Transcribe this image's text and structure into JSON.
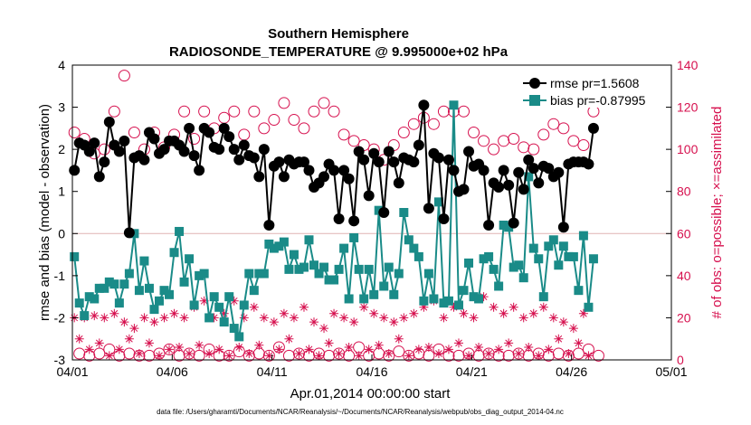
{
  "chart_data": {
    "type": "line",
    "title": "Southern Hemisphere",
    "subtitle": "RADIOSONDE_TEMPERATURE @ 9.995000e+02 hPa",
    "xlabel": "Apr.01,2014 00:00:00 start",
    "ylabel": "rmse and bias (model - observation)",
    "ylabel_right": "# of obs: o=possible; ×=assimilated",
    "footnote": "data file: /Users/gharamti/Documents/NCAR/Reanalysis/~/Documents/NCAR/Reanalysis/webpub/obs_diag_output_2014-04.nc",
    "xlim": [
      0,
      30
    ],
    "ylim": [
      -3,
      4
    ],
    "ylim_right": [
      0,
      140
    ],
    "x_tick_labels": [
      "04/01",
      "04/06",
      "04/11",
      "04/16",
      "04/21",
      "04/26",
      "05/01"
    ],
    "y_ticks": [
      "-3",
      "-2",
      "-1",
      "0",
      "1",
      "2",
      "3",
      "4"
    ],
    "y_ticks_right": [
      "0",
      "20",
      "40",
      "60",
      "80",
      "100",
      "120",
      "140"
    ],
    "x_step_days": 0.25,
    "series": [
      {
        "name": "rmse pr=1.5608",
        "color": "#000000",
        "values": [
          1.5,
          2.15,
          2.1,
          1.95,
          2.15,
          1.35,
          1.7,
          2.65,
          2.1,
          1.95,
          2.2,
          0.02,
          1.8,
          1.85,
          1.75,
          2.4,
          2.25,
          1.9,
          2.0,
          2.2,
          2.2,
          2.1,
          1.95,
          2.5,
          1.85,
          1.5,
          2.5,
          2.4,
          2.05,
          2.0,
          2.5,
          2.3,
          2.0,
          1.75,
          2.1,
          1.85,
          1.8,
          1.35,
          2.0,
          0.2,
          1.6,
          1.7,
          1.35,
          1.75,
          1.65,
          1.7,
          1.7,
          1.5,
          1.1,
          1.2,
          1.35,
          1.65,
          1.5,
          0.35,
          1.5,
          1.3,
          0.3,
          1.95,
          1.75,
          0.9,
          1.9,
          1.7,
          0.5,
          1.95,
          1.7,
          1.2,
          1.8,
          1.75,
          1.7,
          2.1,
          3.05,
          0.6,
          1.9,
          1.8,
          0.35,
          1.75,
          1.5,
          1.0,
          1.05,
          1.95,
          1.6,
          1.65,
          1.5,
          0.2,
          1.2,
          1.1,
          1.5,
          1.15,
          0.25,
          1.45,
          1.05,
          1.75,
          1.55,
          1.2,
          1.6,
          1.55,
          1.35,
          1.45,
          0.15,
          1.65,
          1.7,
          1.7,
          1.7,
          1.65,
          2.5
        ]
      },
      {
        "name": "bias pr=-0.87995",
        "color": "#1a8b88",
        "values": [
          -0.55,
          -1.65,
          -1.95,
          -1.5,
          -1.55,
          -1.3,
          -1.3,
          -1.15,
          -1.2,
          -1.65,
          -1.2,
          -0.95,
          0.0,
          -1.35,
          -0.65,
          -1.3,
          -1.8,
          -1.6,
          -1.35,
          -1.45,
          -0.45,
          0.05,
          -1.15,
          -0.6,
          -1.7,
          -1.0,
          -0.95,
          -2.0,
          -1.5,
          -1.75,
          -2.1,
          -1.5,
          -2.25,
          -2.45,
          -1.7,
          -0.95,
          -1.35,
          -0.95,
          -0.95,
          -0.25,
          -0.35,
          -0.3,
          -0.2,
          -0.85,
          -0.5,
          -0.85,
          -0.8,
          -0.15,
          -0.75,
          -0.95,
          -0.8,
          -1.1,
          -1.1,
          -0.85,
          -0.35,
          -1.55,
          -0.1,
          -0.85,
          -1.55,
          -0.85,
          -1.45,
          0.55,
          -1.25,
          -0.8,
          -1.45,
          -0.95,
          0.5,
          -0.15,
          -0.35,
          -0.55,
          -1.6,
          -0.95,
          -1.55,
          0.75,
          -1.65,
          -1.6,
          3.05,
          -1.7,
          -1.35,
          -0.7,
          -1.5,
          -1.55,
          -0.6,
          -0.55,
          -0.85,
          -1.25,
          0.2,
          0.15,
          -0.8,
          -0.75,
          -1.05,
          1.35,
          -0.35,
          -0.6,
          -1.5,
          -0.3,
          -0.15,
          -0.75,
          -0.3,
          -0.55,
          -0.55,
          -1.35,
          -0.05,
          -1.75,
          -0.6
        ]
      },
      {
        "name": "possible",
        "color": "#d6104e",
        "axis": "right",
        "marker": "circle",
        "values": [
          108,
          3,
          105,
          2,
          98,
          3,
          100,
          5,
          118,
          2,
          135,
          3,
          108,
          2,
          100,
          2,
          108,
          3,
          101,
          5,
          107,
          2,
          118,
          3,
          105,
          2,
          118,
          5,
          110,
          2,
          115,
          2,
          118,
          4,
          107,
          2,
          118,
          3,
          110,
          2,
          114,
          6,
          122,
          2,
          114,
          3,
          110,
          2,
          118,
          3,
          122,
          2,
          118,
          3,
          107,
          2,
          104,
          6,
          102,
          2,
          100,
          3,
          95,
          2,
          102,
          4,
          108,
          2,
          112,
          3,
          115,
          2,
          112,
          5,
          118,
          2,
          118,
          2,
          118,
          3,
          108,
          2,
          104,
          3,
          100,
          2,
          104,
          2,
          105,
          3,
          101,
          2,
          100,
          3,
          107,
          2,
          112,
          3,
          110,
          2,
          104,
          3,
          102,
          5,
          118,
          2
        ]
      },
      {
        "name": "assimilated",
        "color": "#d6104e",
        "axis": "right",
        "marker": "asterisk",
        "values": [
          20,
          10,
          20,
          5,
          21,
          8,
          20,
          2,
          22,
          5,
          18,
          10,
          15,
          3,
          20,
          8,
          18,
          2,
          20,
          5,
          22,
          6,
          20,
          3,
          25,
          7,
          28,
          3,
          20,
          5,
          22,
          2,
          28,
          6,
          20,
          3,
          25,
          7,
          20,
          2,
          18,
          5,
          22,
          10,
          20,
          3,
          25,
          5,
          18,
          2,
          15,
          8,
          22,
          3,
          20,
          6,
          18,
          2,
          25,
          5,
          22,
          7,
          20,
          3,
          18,
          10,
          20,
          2,
          22,
          5,
          25,
          6,
          28,
          3,
          20,
          5,
          25,
          8,
          22,
          2,
          20,
          6,
          30,
          3,
          25,
          5,
          22,
          8,
          25,
          3,
          20,
          6,
          22,
          2,
          25,
          5,
          20,
          10,
          18,
          3,
          15,
          8,
          22,
          2
        ]
      }
    ],
    "legend": {
      "placement": "top-right",
      "entries": [
        "rmse pr=1.5608",
        "bias pr=-0.87995"
      ]
    }
  }
}
